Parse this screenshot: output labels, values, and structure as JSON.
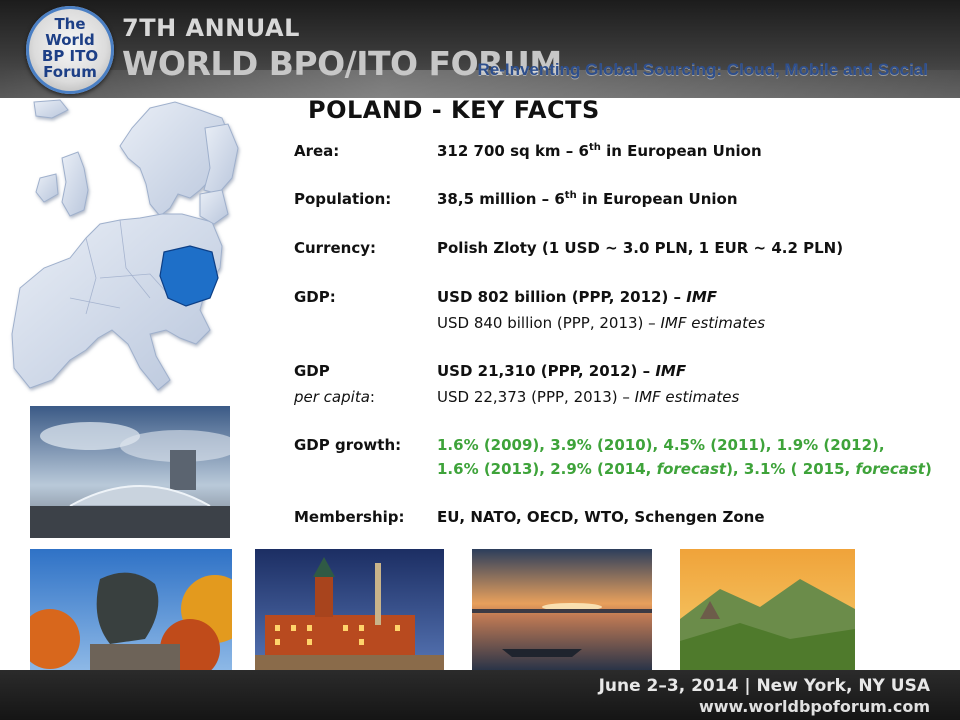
{
  "header": {
    "logo_lines": [
      "The",
      "World",
      "BP ITO",
      "Forum"
    ],
    "annual": "7TH ANNUAL",
    "title": "WORLD BPO/ITO FORUM",
    "tagline": "Re-Inventing Global Sourcing: Cloud, Mobile and Social"
  },
  "main": {
    "title": "POLAND - KEY FACTS",
    "facts": [
      {
        "label": "Area:",
        "value_main": "312 700 sq km – 6",
        "sup": "th",
        "value_rest": " in European Union"
      },
      {
        "label": "Population:",
        "value_main": "38,5 million – 6",
        "sup": "th",
        "value_rest": " in European Union"
      },
      {
        "label": "Currency:",
        "value": "Polish Zloty (1 USD ~ 3.0 PLN, 1 EUR ~ 4.2 PLN)"
      },
      {
        "label": "GDP:",
        "value_main": "USD 802 billion (PPP, 2012) – ",
        "value_italic": "IMF",
        "value2_main": "USD 840 billion (PPP, 2013) – ",
        "value2_italic": "IMF estimates"
      },
      {
        "label": "GDP",
        "label2_italic": "per capita",
        "label2_rest": ":",
        "value_main": "USD 21,310 (PPP, 2012) – ",
        "value_italic": "IMF",
        "value2_main": "USD 22,373 (PPP, 2013) – ",
        "value2_italic": "IMF estimates"
      },
      {
        "label": "GDP growth:",
        "line1": "1.6% (2009), 3.9% (2010), 4.5% (2011), 1.9% (2012),",
        "line2_a": "1.6% (2013), 2.9% (2014, ",
        "line2_b": "forecast",
        "line2_c": "), 3.1% ( 2015, ",
        "line2_d": "forecast",
        "line2_e": ")"
      },
      {
        "label": "Membership:",
        "value": "EU, NATO, OECD, WTO, Schengen Zone"
      }
    ]
  },
  "photos": [
    "warsaw-stadium-photo",
    "chopin-monument-photo",
    "royal-castle-photo",
    "lake-sunset-photo",
    "mountain-valley-photo"
  ],
  "footer": {
    "line1": "June 2–3, 2014 | New York, NY USA",
    "line2": "www.worldbpoforum.com"
  },
  "colors": {
    "accent_blue": "#2e4f8d",
    "poland_highlight": "#1e6fc8",
    "growth_green": "#3ea33a"
  }
}
